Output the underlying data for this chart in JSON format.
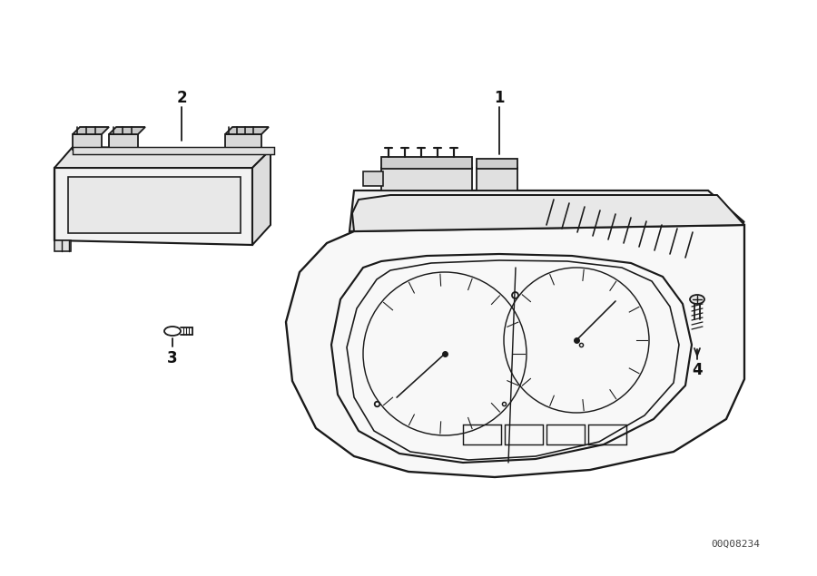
{
  "background_color": "#ffffff",
  "line_color": "#1a1a1a",
  "watermark": "00Q08234",
  "fig_w": 9.0,
  "fig_h": 6.35,
  "dpi": 100
}
